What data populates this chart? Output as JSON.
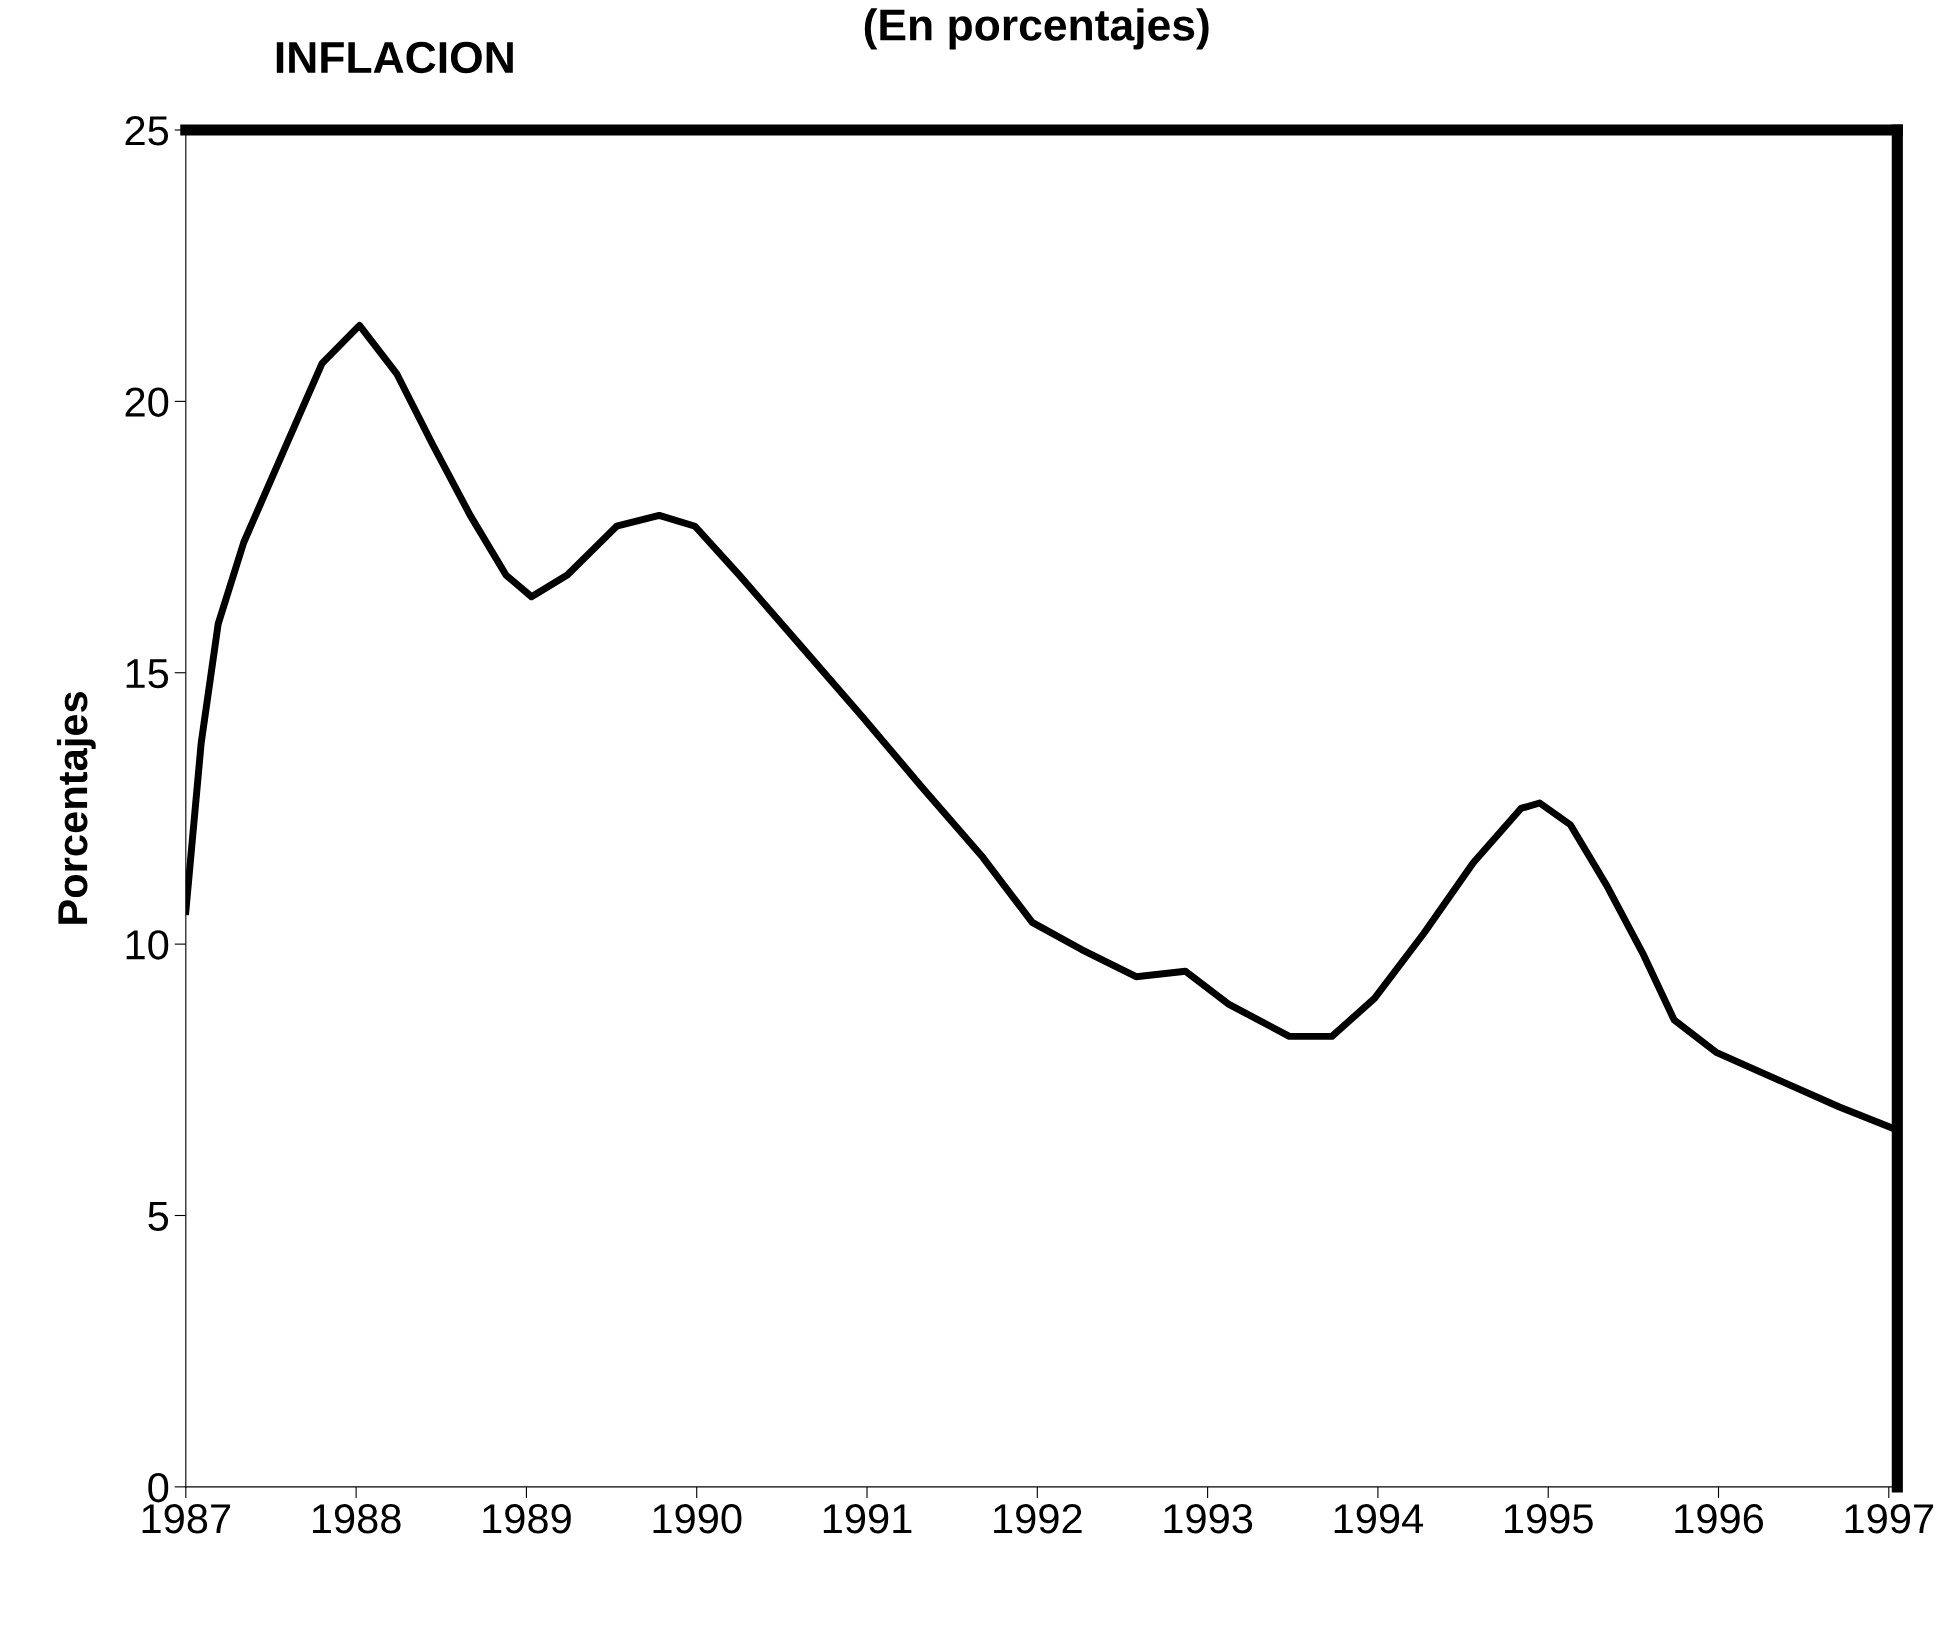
{
  "chart_data": {
    "type": "line",
    "title": "INFLACION",
    "subtitle": "(En porcentajes)",
    "ylabel": "Porcentajes",
    "x": [
      1987.0,
      1987.09,
      1987.19,
      1987.34,
      1987.59,
      1987.8,
      1988.02,
      1988.24,
      1988.45,
      1988.67,
      1988.88,
      1989.03,
      1989.24,
      1989.53,
      1989.78,
      1989.99,
      1990.25,
      1990.61,
      1990.97,
      1991.32,
      1991.68,
      1991.97,
      1992.26,
      1992.58,
      1992.87,
      1993.12,
      1993.48,
      1993.73,
      1993.98,
      1994.27,
      1994.56,
      1994.84,
      1994.95,
      1995.13,
      1995.34,
      1995.56,
      1995.74,
      1995.99,
      1996.35,
      1996.71,
      1997.03
    ],
    "series": [
      {
        "color": "#000000",
        "values": [
          10.6,
          13.7,
          15.9,
          17.4,
          19.2,
          20.7,
          21.4,
          20.5,
          19.2,
          17.9,
          16.8,
          16.4,
          16.8,
          17.7,
          17.9,
          17.7,
          16.8,
          15.5,
          14.2,
          12.9,
          11.6,
          10.4,
          9.9,
          9.4,
          9.5,
          8.9,
          8.3,
          8.3,
          9.0,
          10.2,
          11.5,
          12.5,
          12.6,
          12.2,
          11.1,
          9.8,
          8.6,
          8.0,
          7.5,
          7.0,
          6.6
        ]
      }
    ],
    "xlim": [
      1987,
      1997.05
    ],
    "xticks": [
      1987,
      1988,
      1989,
      1990,
      1991,
      1992,
      1993,
      1994,
      1995,
      1996,
      1997
    ],
    "ylim": [
      0,
      25
    ],
    "yticks": [
      0,
      5,
      10,
      15,
      20,
      25
    ],
    "grid": false,
    "legend": false,
    "marker": "none",
    "line_style": "solid"
  }
}
